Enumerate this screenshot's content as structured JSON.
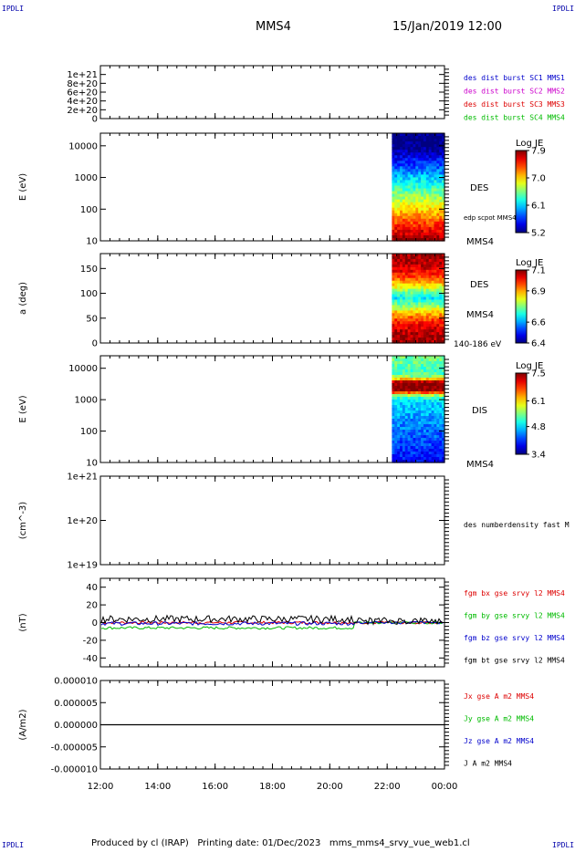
{
  "corners": {
    "top_left": "IPDLI",
    "top_right": "IPDLI",
    "bottom_left": "IPDLI",
    "bottom_right": "IPDLI"
  },
  "header": {
    "spacecraft": "MMS4",
    "datetime": "15/Jan/2019 12:00"
  },
  "footer": {
    "text": "Produced by cl (IRAP)   Printing date: 01/Dec/2023   mms_mms4_srvy_vue_web1.cl"
  },
  "colors": {
    "red": "#dd0000",
    "green": "#00bb00",
    "blue": "#0000cc",
    "magenta": "#cc00cc",
    "black": "#000000"
  },
  "time_axis": {
    "start": "12:00",
    "end": "00:00",
    "ticks": [
      "12:00",
      "14:00",
      "16:00",
      "18:00",
      "20:00",
      "22:00",
      "00:00"
    ]
  },
  "chart_data": [
    {
      "type": "line",
      "panel": "des dist burst",
      "ylabel": "",
      "ylim": [
        0,
        1.2e+21
      ],
      "ticks": [
        "0",
        "2e+20",
        "4e+20",
        "6e+20",
        "8e+20",
        "1e+21"
      ],
      "series": [
        {
          "name": "des dist burst SC1 MMS1",
          "color": "#0000cc"
        },
        {
          "name": "des dist burst SC2 MMS2",
          "color": "#cc00cc"
        },
        {
          "name": "des dist burst SC3 MMS3",
          "color": "#dd0000"
        },
        {
          "name": "des dist burst SC4 MMS4",
          "color": "#00bb00"
        }
      ],
      "baseline": 0
    },
    {
      "type": "heatmap",
      "panel": "DES energy spectrogram",
      "ylabel": "E (eV)",
      "yscale": "log",
      "ylim": [
        10,
        25000
      ],
      "ticks": [
        "10",
        "100",
        "1000",
        "10000"
      ],
      "data_start": "22:10",
      "side_labels": [
        "DES",
        "edp scpot MMS4",
        "MMS4"
      ],
      "colorbar": {
        "title": "Log JE",
        "min": 5.2,
        "max": 7.9,
        "ticks": [
          "7.9",
          "7.0",
          "6.1",
          "5.2"
        ]
      }
    },
    {
      "type": "heatmap",
      "panel": "DES pitch angle",
      "ylabel": "a (deg)",
      "ylim": [
        0,
        180
      ],
      "ticks": [
        "0",
        "50",
        "100",
        "150"
      ],
      "data_start": "22:10",
      "side_labels": [
        "DES",
        "MMS4",
        "140-186 eV"
      ],
      "colorbar": {
        "title": "Log JE",
        "min": 6.4,
        "max": 7.1,
        "ticks": [
          "7.1",
          "6.9",
          "6.6",
          "6.4"
        ]
      }
    },
    {
      "type": "heatmap",
      "panel": "DIS energy spectrogram",
      "ylabel": "E (eV)",
      "yscale": "log",
      "ylim": [
        10,
        25000
      ],
      "ticks": [
        "10",
        "100",
        "1000",
        "10000"
      ],
      "data_start": "22:10",
      "side_labels": [
        "DIS",
        "MMS4"
      ],
      "colorbar": {
        "title": "Log JE",
        "min": 3.4,
        "max": 7.5,
        "ticks": [
          "7.5",
          "6.1",
          "4.8",
          "3.4"
        ]
      }
    },
    {
      "type": "line",
      "panel": "density",
      "ylabel": "(cm^-3)",
      "yscale": "log",
      "ylim": [
        1e+19,
        1e+21
      ],
      "ticks": [
        "1e+19",
        "1e+20",
        "1e+21"
      ],
      "series": [
        {
          "name": "des numberdensity fast M",
          "color": "#000000"
        }
      ]
    },
    {
      "type": "line",
      "panel": "magnetic field",
      "ylabel": "(nT)",
      "ylim": [
        -50,
        50
      ],
      "ticks": [
        "-40",
        "-20",
        "0",
        "20",
        "40"
      ],
      "series": [
        {
          "name": "fgm bx gse srvy l2 MMS4",
          "color": "#dd0000"
        },
        {
          "name": "fgm by gse srvy l2 MMS4",
          "color": "#00bb00"
        },
        {
          "name": "fgm bz gse srvy l2 MMS4",
          "color": "#0000cc"
        },
        {
          "name": "fgm bt gse srvy l2 MMS4",
          "color": "#000000"
        }
      ]
    },
    {
      "type": "line",
      "panel": "current density",
      "ylabel": "(A/m2)",
      "ylim": [
        -1e-05,
        1e-05
      ],
      "ticks": [
        "-0.000010",
        "-0.000005",
        "0.000000",
        "0.000005",
        "0.000010"
      ],
      "series": [
        {
          "name": "Jx gse A m2 MMS4",
          "color": "#dd0000"
        },
        {
          "name": "Jy gse A m2 MMS4",
          "color": "#00bb00"
        },
        {
          "name": "Jz gse A m2 MMS4",
          "color": "#0000cc"
        },
        {
          "name": "J A m2 MMS4",
          "color": "#000000"
        }
      ]
    }
  ]
}
